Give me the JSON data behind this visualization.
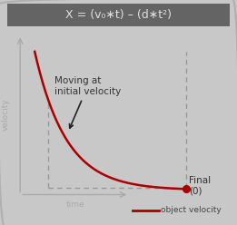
{
  "title": "X = (v₀∗t) – (d∗t²)",
  "title_bg": "#646464",
  "title_color": "#e0e0e0",
  "bg_color": "#c8c8c8",
  "plot_bg": "#e8e8e8",
  "curve_color": "#aa0000",
  "dot_color": "#aa0000",
  "annotation_text": "Moving at\ninitial velocity",
  "final_label": "Final\n(0)",
  "xlabel": "time",
  "ylabel": "velocity",
  "legend_label": "object velocity",
  "dashed_color": "#999999",
  "border_color": "#b0b0b0",
  "axis_color": "#aaaaaa",
  "text_color": "#555555"
}
